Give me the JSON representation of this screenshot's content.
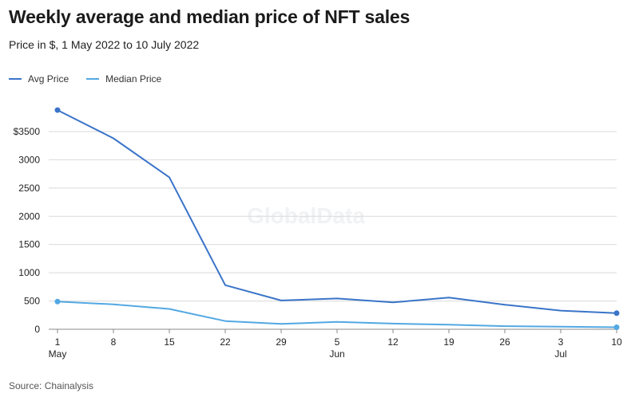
{
  "title": "Weekly average and median price of NFT sales",
  "subtitle": "Price in $, 1 May 2022 to 10 July 2022",
  "source": "Source: Chainalysis",
  "watermark": "GlobalData",
  "legend": [
    {
      "name": "Avg Price",
      "color": "#3a74c9"
    },
    {
      "name": "Median Price",
      "color": "#52a8e3"
    }
  ],
  "chart_data": {
    "type": "line",
    "x": [
      "1 May 2022",
      "8 May 2022",
      "15 May 2022",
      "22 May 2022",
      "29 May 2022",
      "5 Jun 2022",
      "12 Jun 2022",
      "19 Jun 2022",
      "26 Jun 2022",
      "3 Jul 2022",
      "10 Jul 2022"
    ],
    "xticks": [
      "1",
      "8",
      "15",
      "22",
      "29",
      "5",
      "12",
      "19",
      "26",
      "3",
      "10"
    ],
    "month_labels": [
      {
        "index": 0,
        "label": "May"
      },
      {
        "index": 5,
        "label": "Jun"
      },
      {
        "index": 9,
        "label": "Jul"
      }
    ],
    "yticks": [
      "0",
      "500",
      "1000",
      "1500",
      "2000",
      "2500",
      "3000",
      "$3500"
    ],
    "ylim": [
      0,
      3500
    ],
    "grid": true,
    "series": [
      {
        "name": "Avg Price",
        "color": "#3a74c9",
        "values": [
          3880,
          3380,
          2690,
          780,
          510,
          545,
          475,
          560,
          435,
          330,
          285
        ]
      },
      {
        "name": "Median Price",
        "color": "#52a8e3",
        "values": [
          490,
          440,
          360,
          145,
          95,
          130,
          100,
          80,
          55,
          45,
          35
        ]
      }
    ],
    "endpoint_markers": true
  }
}
